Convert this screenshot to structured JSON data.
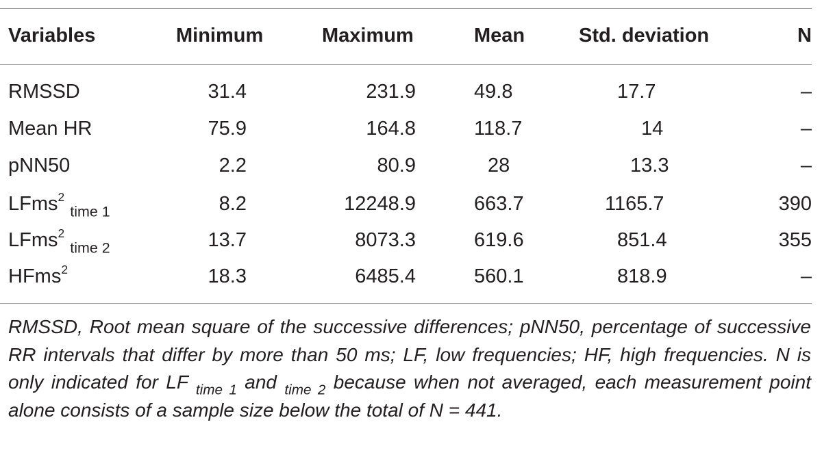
{
  "table": {
    "headers": {
      "variables": "Variables",
      "minimum": "Minimum",
      "maximum": "Maximum",
      "mean": "Mean",
      "std": "Std. deviation",
      "n": "N"
    },
    "rows": [
      {
        "base": "RMSSD",
        "sup": "",
        "sub": "",
        "min": "31.4",
        "max": "231.9",
        "mean": "49.8",
        "std": "17.7",
        "n": "–"
      },
      {
        "base": "Mean HR",
        "sup": "",
        "sub": "",
        "min": "75.9",
        "max": "164.8",
        "mean": "118.7",
        "std": "14",
        "n": "–"
      },
      {
        "base": "pNN50",
        "sup": "",
        "sub": "",
        "min": "2.2",
        "max": "80.9",
        "mean": "28",
        "std": "13.3",
        "n": "–"
      },
      {
        "base": "LFms",
        "sup": "2",
        "sub": "time 1",
        "min": "8.2",
        "max": "12248.9",
        "mean": "663.7",
        "std": "1165.7",
        "n": "390"
      },
      {
        "base": "LFms",
        "sup": "2",
        "sub": "time 2",
        "min": "13.7",
        "max": "8073.3",
        "mean": "619.6",
        "std": "851.4",
        "n": "355"
      },
      {
        "base": "HFms",
        "sup": "2",
        "sub": "",
        "min": "18.3",
        "max": "6485.4",
        "mean": "560.1",
        "std": "818.9",
        "n": "–"
      }
    ],
    "note": {
      "p1": "RMSSD, Root mean square of the successive differences; pNN50, percentage of successive RR intervals that differ by more than 50 ms; LF, low frequencies; HF, high frequencies. N is only indicated for LF ",
      "sub1": "time 1",
      "p2": " and ",
      "sub2": "time 2",
      "p3": " because when not averaged, each measurement point alone consists of a sample size below the total of N = 441."
    }
  }
}
